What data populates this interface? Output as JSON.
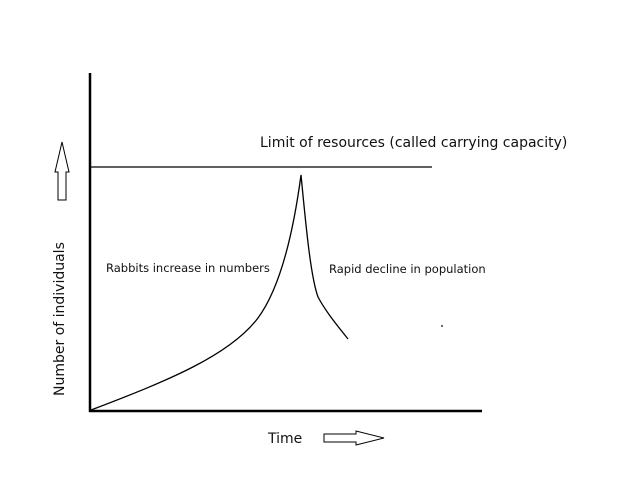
{
  "diagram": {
    "capacity_label": "Limit of resources (called carrying capacity)",
    "increase_label": "Rabbits increase in numbers",
    "decline_label": "Rapid decline in population",
    "x_axis_label": "Time",
    "y_axis_label": "Number of individuals",
    "line_color": "#000000"
  }
}
